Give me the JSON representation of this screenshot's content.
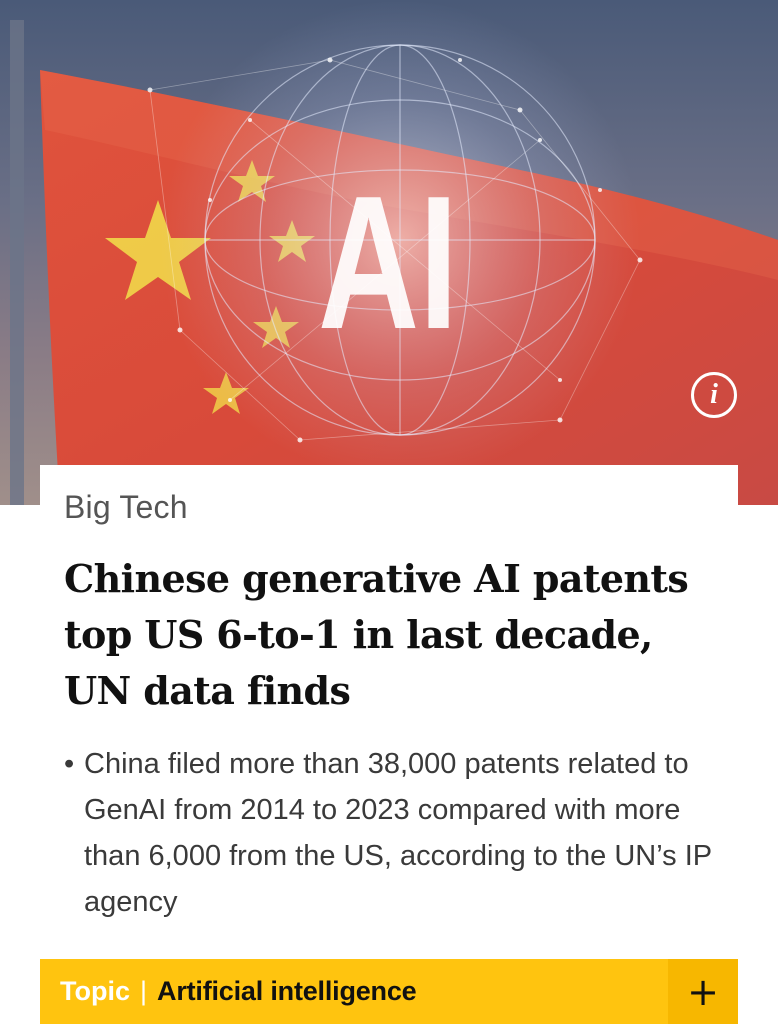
{
  "hero": {
    "image_icon": "china-flag-ai-globe-image",
    "overlay_text": "AI",
    "info_icon": "info-icon",
    "info_glyph": "i",
    "colors": {
      "flag_red": "#d9503c",
      "star_yellow": "#f1d84a",
      "sky": "#4a5a78"
    }
  },
  "article": {
    "section": "Big Tech",
    "headline": "Chinese generative AI patents top US 6-to-1 in last decade, UN data finds",
    "summary": [
      "China filed more than 38,000 patents related to GenAI from 2014 to 2023 compared with more than 6,000 from the US, according to the UN’s IP agency"
    ],
    "bullet": "•"
  },
  "topic": {
    "label": "Topic",
    "separator": "|",
    "name": "Artificial intelligence",
    "add_glyph": "+",
    "add_icon": "plus-icon",
    "colors": {
      "bar": "#ffc40f",
      "button": "#f7b700"
    }
  }
}
